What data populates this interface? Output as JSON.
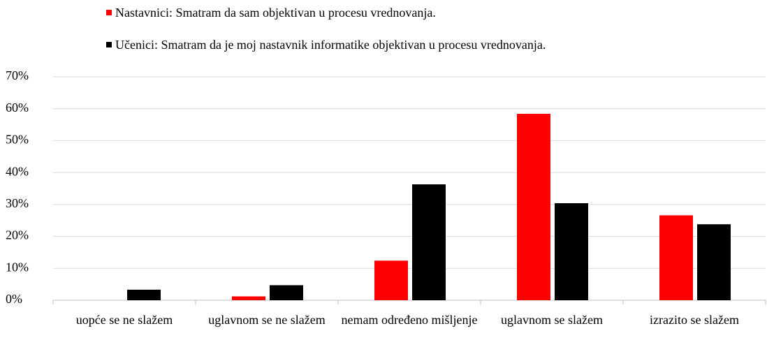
{
  "chart_data": {
    "type": "bar",
    "categories": [
      "uopće se ne slažem",
      "uglavnom se ne slažem",
      "nemam određeno mišljenje",
      "uglavnom se slažem",
      "izrazito se slažem"
    ],
    "series": [
      {
        "name": "Nastavnici: Smatram da sam objektivan u procesu vrednovanja.",
        "color": "#ff0000",
        "values": [
          0,
          1.2,
          12.4,
          58.4,
          26.6
        ]
      },
      {
        "name": "Učenici: Smatram da je moj nastavnik informatike objektivan u procesu vrednovanja.",
        "color": "#000000",
        "values": [
          3.3,
          4.7,
          36.3,
          30.4,
          23.8
        ]
      }
    ],
    "ylim": [
      0,
      70
    ],
    "yticks": [
      {
        "value": 0,
        "label": "0%"
      },
      {
        "value": 10,
        "label": "10%"
      },
      {
        "value": 20,
        "label": "20%"
      },
      {
        "value": 30,
        "label": "30%"
      },
      {
        "value": 40,
        "label": "40%"
      },
      {
        "value": 50,
        "label": "50%"
      },
      {
        "value": 60,
        "label": "60%"
      },
      {
        "value": 70,
        "label": "70%"
      }
    ],
    "grid": true
  }
}
